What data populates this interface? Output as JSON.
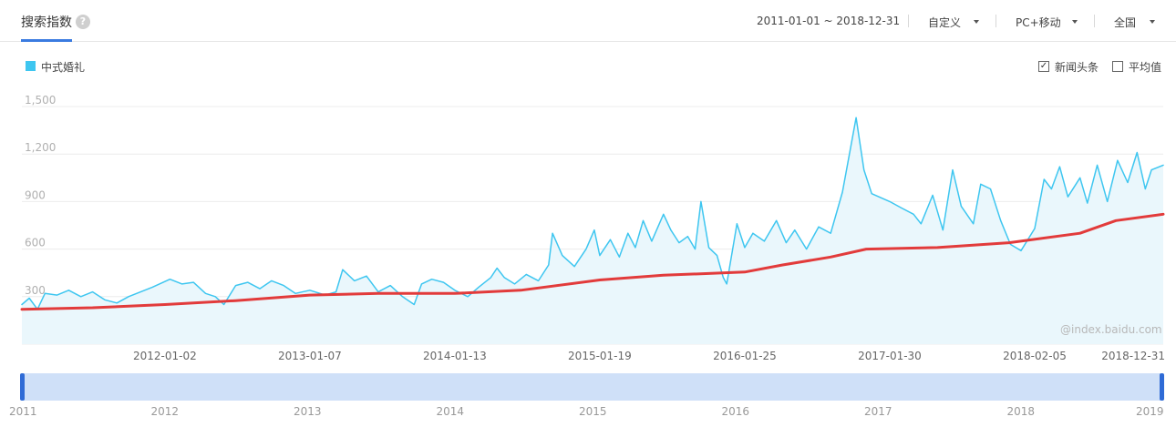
{
  "header": {
    "tab_title": "搜索指数",
    "help_icon": "?",
    "date_range": "2011-01-01 ~ 2018-12-31",
    "dropdowns": [
      {
        "label": "自定义"
      },
      {
        "label": "PC+移动"
      },
      {
        "label": "全国"
      }
    ]
  },
  "legend": {
    "series_name": "中式婚礼",
    "color": "#3ec6f0"
  },
  "options": {
    "news_label": "新闻头条",
    "news_checked": true,
    "news_check_glyph": "✓",
    "average_label": "平均值",
    "average_checked": false
  },
  "watermark": "@index.baidu.com",
  "navigator": {
    "years": [
      "2011",
      "2012",
      "2013",
      "2014",
      "2015",
      "2016",
      "2017",
      "2018",
      "2019"
    ]
  },
  "chart_data": {
    "type": "line",
    "title": "",
    "xlabel": "",
    "ylabel": "",
    "ylim": [
      0,
      1500
    ],
    "yticks": [
      "300",
      "600",
      "900",
      "1,200",
      "1,500"
    ],
    "xticks": [
      "2012-01-02",
      "2013-01-07",
      "2014-01-13",
      "2015-01-19",
      "2016-01-25",
      "2017-01-30",
      "2018-02-05",
      "2018-12-31"
    ],
    "x_range": [
      "2011-01-01",
      "2018-12-31"
    ],
    "grid": true,
    "series": [
      {
        "name": "中式婚礼",
        "color": "#3ec6f0",
        "fill": "#eaf7fc",
        "points": [
          [
            "2011-01-01",
            250
          ],
          [
            "2011-01-20",
            290
          ],
          [
            "2011-02-10",
            220
          ],
          [
            "2011-03-01",
            320
          ],
          [
            "2011-04-01",
            310
          ],
          [
            "2011-05-01",
            340
          ],
          [
            "2011-06-01",
            300
          ],
          [
            "2011-07-01",
            330
          ],
          [
            "2011-08-01",
            280
          ],
          [
            "2011-09-01",
            260
          ],
          [
            "2011-10-01",
            300
          ],
          [
            "2011-11-01",
            330
          ],
          [
            "2011-12-01",
            360
          ],
          [
            "2012-01-15",
            410
          ],
          [
            "2012-02-15",
            380
          ],
          [
            "2012-03-15",
            390
          ],
          [
            "2012-04-15",
            320
          ],
          [
            "2012-05-10",
            300
          ],
          [
            "2012-06-01",
            250
          ],
          [
            "2012-07-01",
            370
          ],
          [
            "2012-08-01",
            390
          ],
          [
            "2012-09-01",
            350
          ],
          [
            "2012-10-01",
            400
          ],
          [
            "2012-11-01",
            370
          ],
          [
            "2012-12-01",
            320
          ],
          [
            "2013-01-07",
            340
          ],
          [
            "2013-02-15",
            310
          ],
          [
            "2013-03-15",
            330
          ],
          [
            "2013-04-01",
            470
          ],
          [
            "2013-05-01",
            400
          ],
          [
            "2013-06-01",
            430
          ],
          [
            "2013-07-01",
            330
          ],
          [
            "2013-08-01",
            370
          ],
          [
            "2013-09-01",
            300
          ],
          [
            "2013-10-01",
            250
          ],
          [
            "2013-10-20",
            380
          ],
          [
            "2013-11-15",
            410
          ],
          [
            "2013-12-15",
            390
          ],
          [
            "2014-01-13",
            340
          ],
          [
            "2014-02-15",
            300
          ],
          [
            "2014-03-15",
            360
          ],
          [
            "2014-04-15",
            420
          ],
          [
            "2014-05-01",
            480
          ],
          [
            "2014-05-20",
            420
          ],
          [
            "2014-06-15",
            380
          ],
          [
            "2014-07-15",
            440
          ],
          [
            "2014-08-15",
            400
          ],
          [
            "2014-09-10",
            500
          ],
          [
            "2014-09-20",
            700
          ],
          [
            "2014-10-15",
            560
          ],
          [
            "2014-11-15",
            490
          ],
          [
            "2014-12-15",
            600
          ],
          [
            "2015-01-05",
            720
          ],
          [
            "2015-01-19",
            560
          ],
          [
            "2015-02-15",
            660
          ],
          [
            "2015-03-10",
            550
          ],
          [
            "2015-04-01",
            700
          ],
          [
            "2015-04-20",
            610
          ],
          [
            "2015-05-10",
            780
          ],
          [
            "2015-06-01",
            650
          ],
          [
            "2015-07-01",
            820
          ],
          [
            "2015-07-20",
            720
          ],
          [
            "2015-08-10",
            640
          ],
          [
            "2015-09-01",
            680
          ],
          [
            "2015-09-20",
            600
          ],
          [
            "2015-10-05",
            900
          ],
          [
            "2015-10-25",
            610
          ],
          [
            "2015-11-15",
            560
          ],
          [
            "2015-12-01",
            420
          ],
          [
            "2015-12-10",
            380
          ],
          [
            "2016-01-05",
            760
          ],
          [
            "2016-01-25",
            610
          ],
          [
            "2016-02-15",
            700
          ],
          [
            "2016-03-15",
            650
          ],
          [
            "2016-04-15",
            780
          ],
          [
            "2016-05-10",
            640
          ],
          [
            "2016-06-01",
            720
          ],
          [
            "2016-07-01",
            600
          ],
          [
            "2016-08-01",
            740
          ],
          [
            "2016-09-01",
            700
          ],
          [
            "2016-10-01",
            960
          ],
          [
            "2016-11-05",
            1430
          ],
          [
            "2016-11-25",
            1100
          ],
          [
            "2016-12-15",
            950
          ],
          [
            "2017-01-30",
            900
          ],
          [
            "2017-03-01",
            860
          ],
          [
            "2017-04-01",
            820
          ],
          [
            "2017-04-20",
            760
          ],
          [
            "2017-05-20",
            940
          ],
          [
            "2017-06-15",
            720
          ],
          [
            "2017-07-10",
            1100
          ],
          [
            "2017-08-01",
            870
          ],
          [
            "2017-09-01",
            760
          ],
          [
            "2017-09-20",
            1010
          ],
          [
            "2017-10-15",
            980
          ],
          [
            "2017-11-10",
            780
          ],
          [
            "2017-12-05",
            630
          ],
          [
            "2018-01-01",
            590
          ],
          [
            "2018-02-05",
            730
          ],
          [
            "2018-03-01",
            1040
          ],
          [
            "2018-03-20",
            980
          ],
          [
            "2018-04-10",
            1120
          ],
          [
            "2018-05-01",
            930
          ],
          [
            "2018-06-01",
            1050
          ],
          [
            "2018-06-20",
            890
          ],
          [
            "2018-07-15",
            1130
          ],
          [
            "2018-08-10",
            900
          ],
          [
            "2018-09-05",
            1160
          ],
          [
            "2018-10-01",
            1020
          ],
          [
            "2018-10-25",
            1210
          ],
          [
            "2018-11-15",
            980
          ],
          [
            "2018-12-01",
            1100
          ],
          [
            "2018-12-31",
            1130
          ]
        ]
      },
      {
        "name": "",
        "color": "#e23b3b",
        "points": [
          [
            "2011-01-01",
            220
          ],
          [
            "2011-07-01",
            230
          ],
          [
            "2012-01-02",
            250
          ],
          [
            "2012-07-01",
            275
          ],
          [
            "2013-01-07",
            310
          ],
          [
            "2013-07-01",
            320
          ],
          [
            "2014-01-13",
            320
          ],
          [
            "2014-07-01",
            340
          ],
          [
            "2015-01-19",
            405
          ],
          [
            "2015-07-01",
            435
          ],
          [
            "2016-01-25",
            455
          ],
          [
            "2016-05-01",
            500
          ],
          [
            "2016-09-01",
            550
          ],
          [
            "2016-12-01",
            600
          ],
          [
            "2017-06-01",
            610
          ],
          [
            "2017-12-01",
            640
          ],
          [
            "2018-06-01",
            700
          ],
          [
            "2018-09-01",
            780
          ],
          [
            "2018-12-31",
            820
          ]
        ]
      }
    ]
  }
}
